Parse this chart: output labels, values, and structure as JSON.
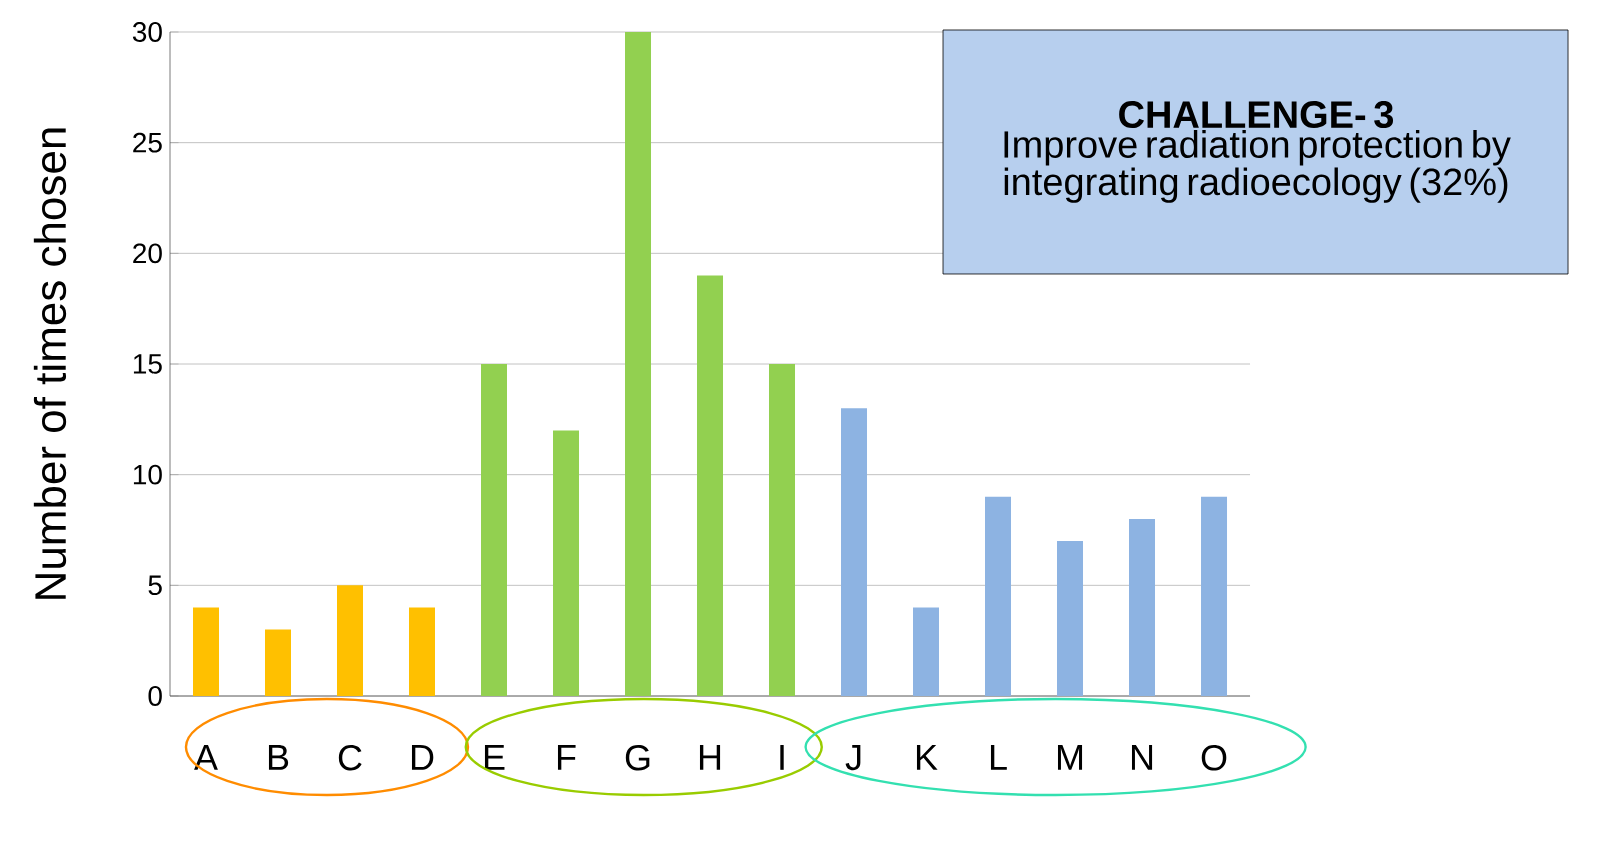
{
  "chart_data": {
    "type": "bar",
    "title": "CHALLENGE- 3",
    "subtitle": "Improve radiation protection by integrating radioecology (32%)",
    "ylabel": "Number of times chosen",
    "categories": [
      "A",
      "B",
      "C",
      "D",
      "E",
      "F",
      "G",
      "H",
      "I",
      "J",
      "K",
      "L",
      "M",
      "N",
      "O"
    ],
    "values": [
      4,
      3,
      5,
      4,
      15,
      12,
      30,
      19,
      15,
      13,
      4,
      9,
      7,
      8,
      9
    ],
    "colors": [
      "#ffc000",
      "#ffc000",
      "#ffc000",
      "#ffc000",
      "#92d050",
      "#92d050",
      "#92d050",
      "#92d050",
      "#92d050",
      "#8db3e2",
      "#8db3e2",
      "#8db3e2",
      "#8db3e2",
      "#8db3e2",
      "#8db3e2"
    ],
    "ylim": [
      0,
      30
    ],
    "yticks": [
      0,
      5,
      10,
      15,
      20,
      25,
      30
    ],
    "grid": "y"
  }
}
